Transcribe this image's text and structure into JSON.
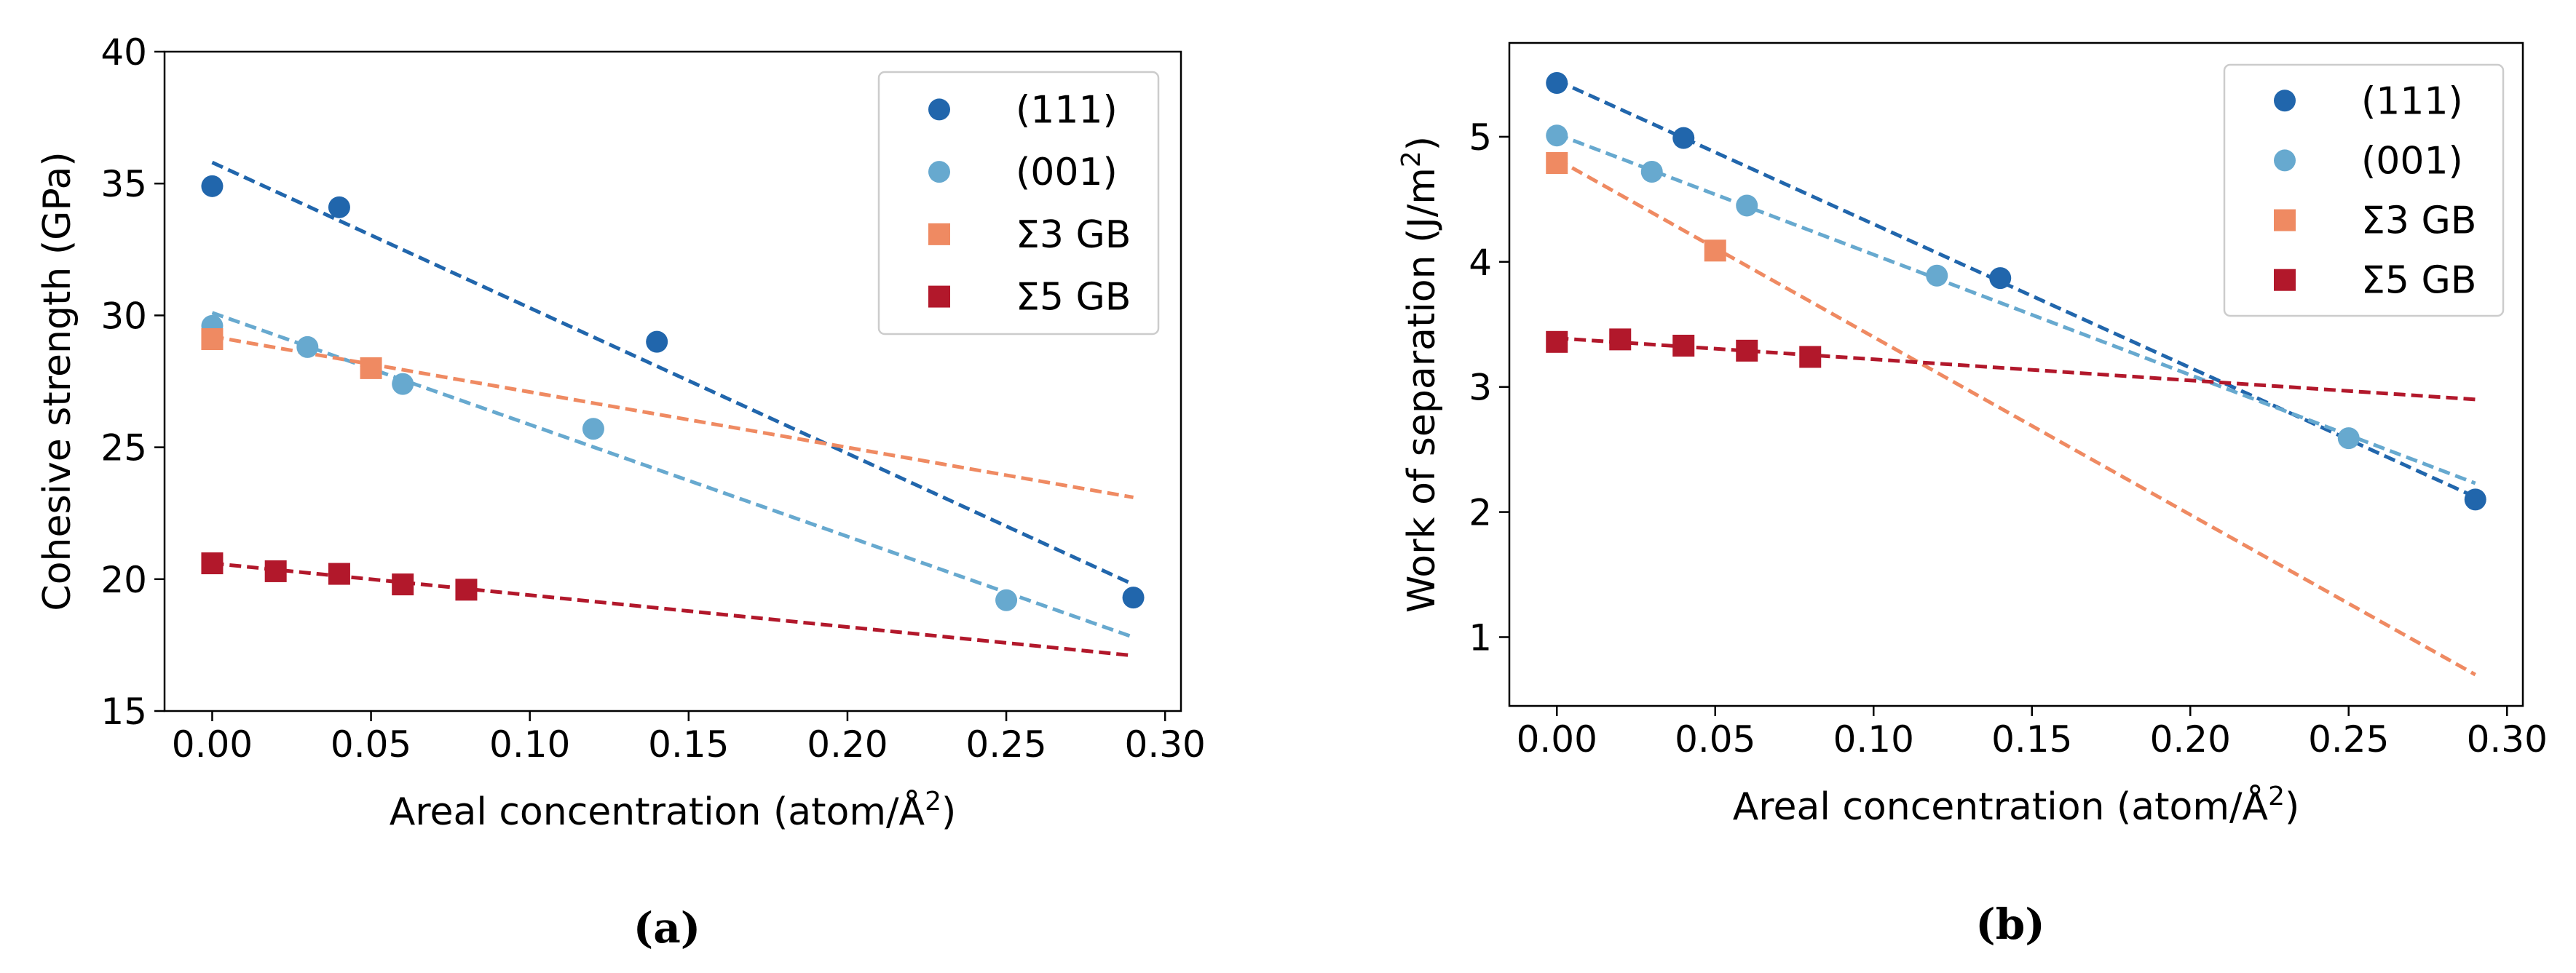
{
  "colors": {
    "s111": "#2166ac",
    "s001": "#67a9cf",
    "sig3": "#ef8a62",
    "sig5": "#b2182b"
  },
  "legend": [
    {
      "key": "s111",
      "label": "(111)",
      "marker": "circle"
    },
    {
      "key": "s001",
      "label": "(001)",
      "marker": "circle"
    },
    {
      "key": "sig3",
      "label": "Σ3 GB",
      "marker": "square"
    },
    {
      "key": "sig5",
      "label": "Σ5 GB",
      "marker": "square"
    }
  ],
  "chart_data": [
    {
      "type": "scatter",
      "panel_label": "(a)",
      "xlabel": "Areal concentration (atom/Å",
      "xlabel_sup": "2",
      "xlabel_tail": ")",
      "ylabel": "Cohesive strength (GPa)",
      "xlim": [
        -0.015,
        0.305
      ],
      "ylim": [
        15,
        40
      ],
      "xticks": [
        0.0,
        0.05,
        0.1,
        0.15,
        0.2,
        0.25,
        0.3
      ],
      "xtick_labels": [
        "0.00",
        "0.05",
        "0.10",
        "0.15",
        "0.20",
        "0.25",
        "0.30"
      ],
      "yticks": [
        15,
        20,
        25,
        30,
        35,
        40
      ],
      "ytick_labels": [
        "15",
        "20",
        "25",
        "30",
        "35",
        "40"
      ],
      "legend_position": "top-right",
      "series": [
        {
          "key": "s111",
          "name": "(111)",
          "marker": "circle",
          "x": [
            0.0,
            0.04,
            0.14,
            0.29
          ],
          "y": [
            34.9,
            34.1,
            29.0,
            19.3
          ],
          "fit": {
            "x": [
              0.0,
              0.29
            ],
            "y": [
              35.8,
              19.8
            ]
          }
        },
        {
          "key": "s001",
          "name": "(001)",
          "marker": "circle",
          "x": [
            0.0,
            0.03,
            0.06,
            0.12,
            0.25
          ],
          "y": [
            29.6,
            28.8,
            27.4,
            25.7,
            19.2
          ],
          "fit": {
            "x": [
              0.0,
              0.29
            ],
            "y": [
              30.1,
              17.8
            ]
          }
        },
        {
          "key": "sig3",
          "name": "Σ3 GB",
          "marker": "square",
          "x": [
            0.0,
            0.05
          ],
          "y": [
            29.1,
            28.0
          ],
          "fit": {
            "x": [
              0.0,
              0.29
            ],
            "y": [
              29.2,
              23.1
            ]
          }
        },
        {
          "key": "sig5",
          "name": "Σ5 GB",
          "marker": "square",
          "x": [
            0.0,
            0.02,
            0.04,
            0.06,
            0.08
          ],
          "y": [
            20.6,
            20.3,
            20.2,
            19.8,
            19.6
          ],
          "fit": {
            "x": [
              0.0,
              0.29
            ],
            "y": [
              20.6,
              17.1
            ]
          }
        }
      ]
    },
    {
      "type": "scatter",
      "panel_label": "(b)",
      "xlabel": "Areal concentration (atom/Å",
      "xlabel_sup": "2",
      "xlabel_tail": ")",
      "ylabel": "Work of separation (J/m",
      "ylabel_sup": "2",
      "ylabel_tail": ")",
      "xlim": [
        -0.015,
        0.305
      ],
      "ylim": [
        0.45,
        5.75
      ],
      "xticks": [
        0.0,
        0.05,
        0.1,
        0.15,
        0.2,
        0.25,
        0.3
      ],
      "xtick_labels": [
        "0.00",
        "0.05",
        "0.10",
        "0.15",
        "0.20",
        "0.25",
        "0.30"
      ],
      "yticks": [
        1,
        2,
        3,
        4,
        5
      ],
      "ytick_labels": [
        "1",
        "2",
        "3",
        "4",
        "5"
      ],
      "legend_position": "top-right",
      "series": [
        {
          "key": "s111",
          "name": "(111)",
          "marker": "circle",
          "x": [
            0.0,
            0.04,
            0.14,
            0.29
          ],
          "y": [
            5.43,
            4.99,
            3.87,
            2.1
          ],
          "fit": {
            "x": [
              0.0,
              0.29
            ],
            "y": [
              5.45,
              2.12
            ]
          }
        },
        {
          "key": "s001",
          "name": "(001)",
          "marker": "circle",
          "x": [
            0.0,
            0.03,
            0.06,
            0.12,
            0.25
          ],
          "y": [
            5.01,
            4.72,
            4.45,
            3.89,
            2.59
          ],
          "fit": {
            "x": [
              0.0,
              0.29
            ],
            "y": [
              5.02,
              2.23
            ]
          }
        },
        {
          "key": "sig3",
          "name": "Σ3 GB",
          "marker": "square",
          "x": [
            0.0,
            0.05
          ],
          "y": [
            4.79,
            4.09
          ],
          "fit": {
            "x": [
              0.0,
              0.29
            ],
            "y": [
              4.82,
              0.7
            ]
          }
        },
        {
          "key": "sig5",
          "name": "Σ5 GB",
          "marker": "square",
          "x": [
            0.0,
            0.02,
            0.04,
            0.06,
            0.08
          ],
          "y": [
            3.36,
            3.38,
            3.33,
            3.29,
            3.24
          ],
          "fit": {
            "x": [
              0.0,
              0.29
            ],
            "y": [
              3.39,
              2.9
            ]
          }
        }
      ]
    }
  ]
}
